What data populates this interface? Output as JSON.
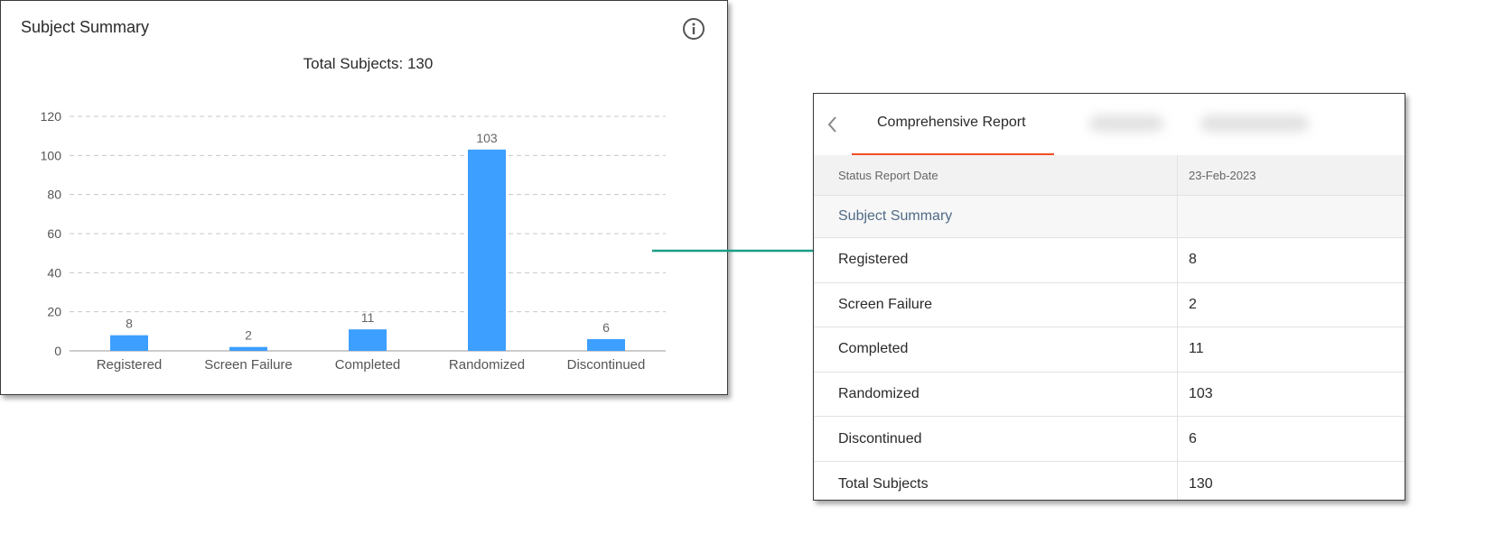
{
  "chart_card": {
    "title": "Subject Summary",
    "total_label": "Total Subjects: 130",
    "icons": {
      "info": "info-icon"
    }
  },
  "chart_data": {
    "type": "bar",
    "categories": [
      "Registered",
      "Screen Failure",
      "Completed",
      "Randomized",
      "Discontinued"
    ],
    "values": [
      8,
      2,
      11,
      103,
      6
    ],
    "title": "Total Subjects: 130",
    "xlabel": "",
    "ylabel": "",
    "ylim": [
      0,
      120
    ],
    "yticks": [
      0,
      20,
      40,
      60,
      80,
      100,
      120
    ],
    "grid": true,
    "bar_color": "#3d9fff"
  },
  "report": {
    "tab_label": "Comprehensive Report",
    "accent_color": "#f04e23",
    "icons": {
      "back": "chevron-left-icon"
    },
    "header": {
      "col1": "Status Report Date",
      "col2": "23-Feb-2023"
    },
    "section_label": "Subject Summary",
    "rows": [
      {
        "label": "Registered",
        "value": "8"
      },
      {
        "label": "Screen Failure",
        "value": "2"
      },
      {
        "label": "Completed",
        "value": "11"
      },
      {
        "label": "Randomized",
        "value": "103"
      },
      {
        "label": "Discontinued",
        "value": "6"
      },
      {
        "label": "Total Subjects",
        "value": "130"
      }
    ]
  },
  "arrow_color": "#1a9e86"
}
